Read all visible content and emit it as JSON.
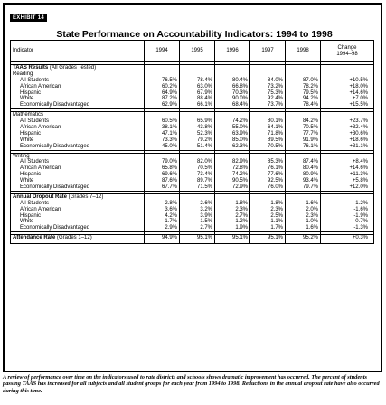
{
  "exhibit_label": "EXHIBIT 14",
  "title": "State Performance on Accountability Indicators: 1994 to 1998",
  "headers": [
    "Indicator",
    "1994",
    "1995",
    "1996",
    "1997",
    "1998",
    "Change\n1994–98"
  ],
  "sections": [
    {
      "title": "TAAS Results",
      "title_note": "(All Grades Tested)",
      "subtitle": "Reading",
      "rows": [
        {
          "label": "All Students",
          "values": [
            "76.5%",
            "78.4%",
            "80.4%",
            "84.0%",
            "87.0%"
          ],
          "change": "+10.5%"
        },
        {
          "label": "African American",
          "values": [
            "60.2%",
            "63.0%",
            "66.8%",
            "73.2%",
            "78.2%"
          ],
          "change": "+18.0%"
        },
        {
          "label": "Hispanic",
          "values": [
            "64.9%",
            "67.9%",
            "70.3%",
            "75.3%",
            "79.5%"
          ],
          "change": "+14.6%"
        },
        {
          "label": "White",
          "values": [
            "87.2%",
            "88.4%",
            "90.0%",
            "92.4%",
            "94.2%"
          ],
          "change": "+7.0%"
        },
        {
          "label": "Economically Disadvantaged",
          "values": [
            "62.9%",
            "66.1%",
            "68.4%",
            "73.7%",
            "78.4%"
          ],
          "change": "+15.5%"
        }
      ]
    },
    {
      "title": "",
      "title_note": "",
      "subtitle": "Mathematics",
      "rows": [
        {
          "label": "All Students",
          "values": [
            "60.5%",
            "65.9%",
            "74.2%",
            "80.1%",
            "84.2%"
          ],
          "change": "+23.7%"
        },
        {
          "label": "African American",
          "values": [
            "38.1%",
            "43.8%",
            "55.0%",
            "64.1%",
            "70.5%"
          ],
          "change": "+32.4%"
        },
        {
          "label": "Hispanic",
          "values": [
            "47.1%",
            "52.3%",
            "63.9%",
            "71.8%",
            "77.7%"
          ],
          "change": "+30.6%"
        },
        {
          "label": "White",
          "values": [
            "73.3%",
            "79.2%",
            "85.0%",
            "89.5%",
            "91.9%"
          ],
          "change": "+18.6%"
        },
        {
          "label": "Economically Disadvantaged",
          "values": [
            "45.0%",
            "51.4%",
            "62.3%",
            "70.5%",
            "76.1%"
          ],
          "change": "+31.1%"
        }
      ]
    },
    {
      "title": "",
      "title_note": "",
      "subtitle": "Writing",
      "rows": [
        {
          "label": "All Students",
          "values": [
            "79.0%",
            "82.0%",
            "82.9%",
            "85.3%",
            "87.4%"
          ],
          "change": "+8.4%"
        },
        {
          "label": "African American",
          "values": [
            "65.8%",
            "70.5%",
            "72.8%",
            "76.1%",
            "80.4%"
          ],
          "change": "+14.6%"
        },
        {
          "label": "Hispanic",
          "values": [
            "69.6%",
            "73.4%",
            "74.2%",
            "77.6%",
            "80.9%"
          ],
          "change": "+11.3%"
        },
        {
          "label": "White",
          "values": [
            "87.6%",
            "89.7%",
            "90.5%",
            "92.5%",
            "93.4%"
          ],
          "change": "+5.8%"
        },
        {
          "label": "Economically Disadvantaged",
          "values": [
            "67.7%",
            "71.5%",
            "72.9%",
            "76.0%",
            "79.7%"
          ],
          "change": "+12.0%"
        }
      ]
    },
    {
      "title": "Annual Dropout Rate",
      "title_note": "(Grades 7–12)",
      "subtitle": "",
      "rows": [
        {
          "label": "All Students",
          "values": [
            "2.8%",
            "2.6%",
            "1.8%",
            "1.8%",
            "1.6%"
          ],
          "change": "-1.2%"
        },
        {
          "label": "African American",
          "values": [
            "3.6%",
            "3.2%",
            "2.3%",
            "2.3%",
            "2.0%"
          ],
          "change": "-1.6%"
        },
        {
          "label": "Hispanic",
          "values": [
            "4.2%",
            "3.9%",
            "2.7%",
            "2.5%",
            "2.3%"
          ],
          "change": "-1.9%"
        },
        {
          "label": "White",
          "values": [
            "1.7%",
            "1.5%",
            "1.2%",
            "1.1%",
            "1.0%"
          ],
          "change": "-0.7%"
        },
        {
          "label": "Economically Disadvantaged",
          "values": [
            "2.9%",
            "2.7%",
            "1.9%",
            "1.7%",
            "1.6%"
          ],
          "change": "-1.3%"
        }
      ]
    }
  ],
  "attendance": {
    "title": "Attendance Rate",
    "title_note": "(Grades 1–12)",
    "values": [
      "94.9%",
      "95.1%",
      "95.1%",
      "95.1%",
      "95.2%"
    ],
    "change": "+0.3%"
  },
  "caption": "A review of performance over time on the indicators used to rate districts and schools shows dramatic improvement has occurred. The percent of students passing TAAS has increased for all subjects and all student groups for each year from 1994 to 1998. Reductions in the annual dropout rate have also occurred during this time."
}
